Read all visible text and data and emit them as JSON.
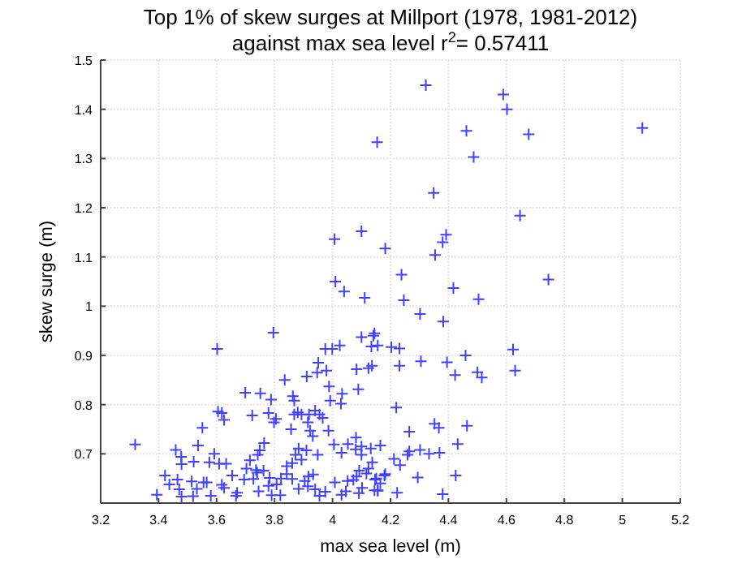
{
  "chart_data": {
    "type": "scatter",
    "title": "Top 1% of skew surges at Millport (1978, 1981-2012)",
    "subtitle": "against max sea level r$^{2}$= 0.57411",
    "xlabel": "max sea level (m)",
    "ylabel": "skew surge (m)",
    "xlim": [
      3.2,
      5.2
    ],
    "ylim": [
      0.6,
      1.5
    ],
    "xticks": [
      3.2,
      3.4,
      3.6,
      3.8,
      4,
      4.2,
      4.4,
      4.6,
      4.8,
      5,
      5.2
    ],
    "yticks": [
      0.7,
      0.8,
      0.9,
      1,
      1.1,
      1.2,
      1.3,
      1.4,
      1.5
    ],
    "grid": true,
    "marker": "cross",
    "series": [
      {
        "color": "#4040ff",
        "x": [
          4.007,
          4.154,
          4.1,
          4.182,
          4.01,
          4.04,
          4.322,
          4.589,
          4.602,
          4.462,
          4.677,
          5.069,
          4.487,
          4.349,
          4.647,
          4.392,
          4.38,
          4.354,
          4.238,
          4.417,
          4.745,
          4.246,
          4.504,
          4.302,
          4.382,
          4.145,
          4.156,
          4.203,
          4.231,
          4.623,
          4.459,
          4.231,
          4.305,
          4.395,
          4.63,
          4.423,
          4.5,
          4.515,
          4.22,
          4.265,
          4.352,
          4.367,
          4.464,
          4.432,
          4.212,
          4.233,
          4.265,
          4.259,
          4.302,
          4.333,
          4.369,
          4.182,
          4.294,
          4.425,
          4.151,
          4.165,
          4.145,
          4.156,
          4.223,
          4.38,
          4.111,
          4.1,
          4.141,
          4.134,
          4.025,
          3.975,
          3.999,
          3.951,
          3.947,
          3.979,
          3.911,
          4.124,
          4.083,
          4.136,
          4.089,
          3.988,
          3.835,
          3.796,
          3.602,
          3.699,
          3.751,
          3.788,
          3.863,
          3.868,
          4.033,
          3.992,
          4.029,
          3.94,
          3.955,
          3.919,
          3.868,
          3.88,
          3.893,
          3.723,
          3.779,
          3.805,
          3.798,
          3.605,
          3.618,
          3.626,
          3.551,
          3.915,
          3.923,
          3.857,
          3.932,
          3.966,
          3.319,
          3.459,
          3.536,
          3.592,
          3.764,
          3.749,
          3.742,
          3.872,
          3.883,
          3.893,
          3.861,
          3.949,
          4.005,
          4.053,
          4.081,
          4.1,
          4.132,
          4.165,
          4.031,
          4.08,
          3.478,
          3.479,
          3.521,
          3.575,
          3.609,
          3.633,
          3.715,
          3.703,
          3.736,
          3.654,
          3.422,
          3.465,
          3.437,
          3.471,
          3.479,
          3.519,
          3.532,
          3.514,
          3.555,
          3.566,
          3.58,
          3.618,
          3.626,
          3.394,
          3.667,
          3.671,
          3.695,
          3.727,
          3.74,
          3.762,
          3.783,
          3.779,
          3.745,
          3.79,
          3.807,
          3.82,
          3.822,
          3.842,
          3.842,
          3.861,
          3.883,
          3.904,
          3.917,
          3.915,
          3.933,
          3.94,
          3.955,
          3.975,
          4.008,
          4.031,
          4.046,
          4.052,
          4.072,
          4.083,
          4.092,
          4.117,
          4.102,
          4.091,
          4.137,
          4.156,
          4.147,
          4.124,
          4.179,
          4.1,
          3.91,
          3.986
        ],
        "values": [
          1.136,
          1.333,
          1.152,
          1.117,
          1.05,
          1.03,
          1.449,
          1.43,
          1.4,
          1.356,
          1.349,
          1.362,
          1.303,
          1.23,
          1.184,
          1.145,
          1.13,
          1.104,
          1.064,
          1.037,
          1.054,
          1.012,
          1.014,
          0.984,
          0.969,
          0.945,
          0.92,
          0.917,
          0.914,
          0.912,
          0.9,
          0.879,
          0.888,
          0.886,
          0.869,
          0.86,
          0.866,
          0.855,
          0.794,
          0.745,
          0.761,
          0.753,
          0.757,
          0.72,
          0.69,
          0.677,
          0.705,
          0.698,
          0.708,
          0.7,
          0.702,
          0.659,
          0.652,
          0.656,
          0.65,
          0.64,
          0.626,
          0.625,
          0.621,
          0.618,
          1.017,
          0.937,
          0.94,
          0.918,
          0.92,
          0.913,
          0.913,
          0.885,
          0.865,
          0.869,
          0.857,
          0.874,
          0.872,
          0.879,
          0.831,
          0.837,
          0.85,
          0.946,
          0.913,
          0.824,
          0.823,
          0.81,
          0.817,
          0.808,
          0.822,
          0.808,
          0.802,
          0.788,
          0.78,
          0.78,
          0.78,
          0.784,
          0.78,
          0.778,
          0.783,
          0.771,
          0.764,
          0.786,
          0.783,
          0.769,
          0.753,
          0.764,
          0.747,
          0.75,
          0.736,
          0.773,
          0.719,
          0.708,
          0.717,
          0.7,
          0.722,
          0.707,
          0.698,
          0.698,
          0.711,
          0.688,
          0.681,
          0.698,
          0.719,
          0.72,
          0.733,
          0.715,
          0.711,
          0.717,
          0.702,
          0.709,
          0.694,
          0.679,
          0.684,
          0.683,
          0.68,
          0.68,
          0.687,
          0.67,
          0.667,
          0.656,
          0.656,
          0.648,
          0.638,
          0.628,
          0.613,
          0.614,
          0.629,
          0.644,
          0.642,
          0.642,
          0.615,
          0.637,
          0.631,
          0.617,
          0.615,
          0.621,
          0.648,
          0.649,
          0.662,
          0.666,
          0.651,
          0.635,
          0.624,
          0.616,
          0.638,
          0.616,
          0.65,
          0.675,
          0.659,
          0.649,
          0.629,
          0.645,
          0.654,
          0.634,
          0.658,
          0.628,
          0.615,
          0.623,
          0.642,
          0.617,
          0.624,
          0.645,
          0.647,
          0.654,
          0.666,
          0.66,
          0.631,
          0.62,
          0.683,
          0.626,
          0.648,
          0.67,
          0.656,
          0.698,
          0.707,
          0.747
        ]
      }
    ]
  }
}
